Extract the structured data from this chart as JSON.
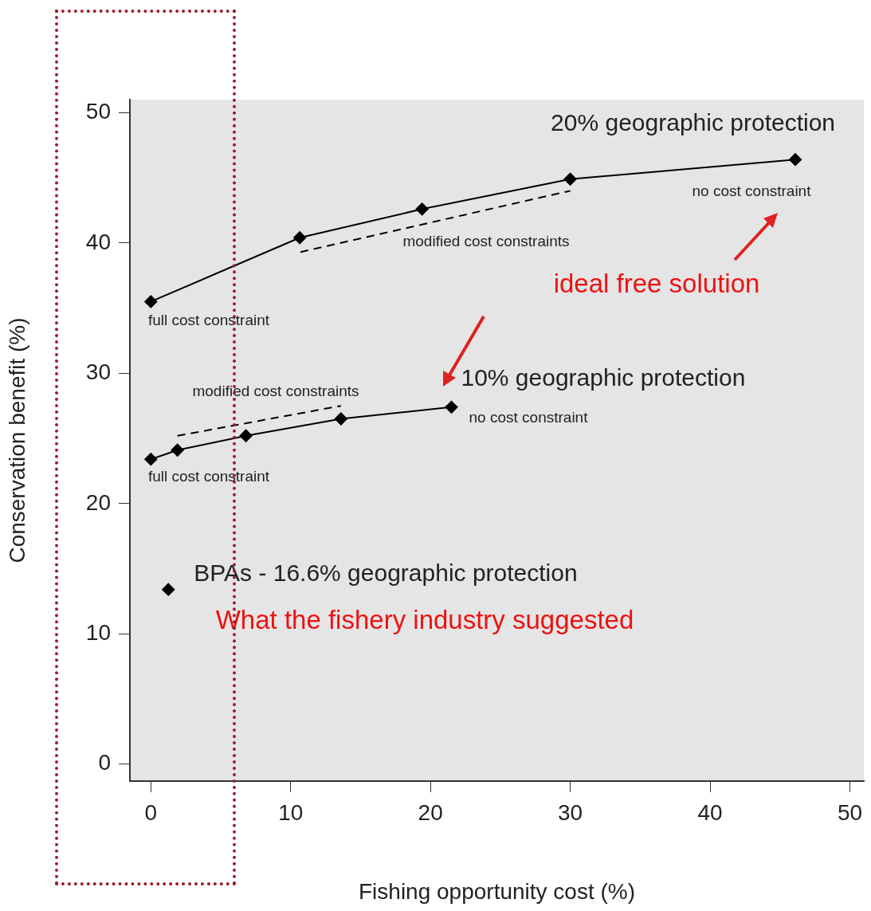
{
  "chart_data": {
    "type": "line",
    "xlabel": "Fishing opportunity cost (%)",
    "ylabel": "Conservation benefit (%)",
    "xlim": [
      -1.5,
      51
    ],
    "xticks": [
      0,
      10,
      20,
      30,
      40,
      50
    ],
    "ylim": [
      -1.3,
      51
    ],
    "yticks": [
      0,
      10,
      20,
      30,
      40,
      50
    ],
    "grid": false,
    "legend": false,
    "series": [
      {
        "name": "20% geographic protection",
        "color": "#000000",
        "marker": "diamond",
        "x": [
          0,
          10.65,
          19.4,
          30,
          46.1
        ],
        "values": [
          35.5,
          40.4,
          42.6,
          44.9,
          46.4
        ]
      },
      {
        "type": "line",
        "color": "#000000",
        "marker": "none",
        "line_style": "dashed",
        "x": [
          10.7,
          30
        ],
        "values": [
          39.3,
          44.0
        ]
      },
      {
        "name": "10% geographic protection",
        "color": "#000000",
        "marker": "diamond",
        "x": [
          0,
          1.9,
          6.8,
          13.6,
          21.5
        ],
        "values": [
          23.4,
          24.1,
          25.2,
          26.5,
          27.4
        ]
      },
      {
        "type": "line",
        "color": "#000000",
        "marker": "none",
        "line_style": "dashed",
        "x": [
          1.9,
          13.6
        ],
        "values": [
          25.2,
          27.5
        ]
      },
      {
        "name": "BPAs - 16.6% geographic protection",
        "type": "scatter",
        "color": "#000000",
        "marker": "diamond",
        "x": [
          1.25
        ],
        "values": [
          13.4
        ]
      }
    ],
    "annotations": [
      "full cost constraint",
      "modified cost constraints",
      "no cost constraint",
      "modified cost constraints",
      "no cost constraint",
      "full cost constraint",
      "ideal free solution",
      "What the fishery industry suggested"
    ]
  }
}
